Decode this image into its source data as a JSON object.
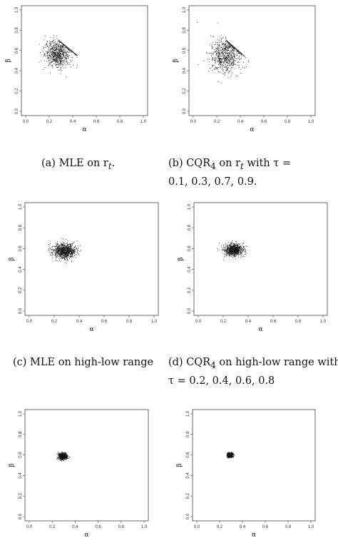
{
  "chart_data": [
    {
      "type": "scatter",
      "xlabel": "α",
      "ylabel": "β",
      "xlim": [
        0,
        1
      ],
      "ylim": [
        0,
        1
      ],
      "xticks": [
        "0.0",
        "0.2",
        "0.4",
        "0.6",
        "0.8",
        "1.0"
      ],
      "yticks": [
        "0.0",
        "0.2",
        "0.4",
        "0.6",
        "0.8",
        "1.0"
      ],
      "center": [
        0.27,
        0.57
      ],
      "spread": [
        0.055,
        0.065
      ],
      "n_points": 700,
      "boundary_line": [
        [
          0.28,
          0.7
        ],
        [
          0.44,
          0.55
        ]
      ]
    },
    {
      "type": "scatter",
      "xlabel": "α",
      "ylabel": "β",
      "xlim": [
        0,
        1
      ],
      "ylim": [
        0,
        1
      ],
      "xticks": [
        "0.0",
        "0.2",
        "0.4",
        "0.6",
        "0.8",
        "1.0"
      ],
      "yticks": [
        "0.0",
        "0.2",
        "0.4",
        "0.6",
        "0.8",
        "1.0"
      ],
      "center": [
        0.27,
        0.56
      ],
      "spread": [
        0.065,
        0.085
      ],
      "n_points": 700,
      "boundary_line": [
        [
          0.28,
          0.7
        ],
        [
          0.42,
          0.56
        ]
      ]
    },
    {
      "type": "scatter",
      "xlabel": "α",
      "ylabel": "β",
      "xlim": [
        0,
        1
      ],
      "ylim": [
        0,
        1
      ],
      "xticks": [
        "0.0",
        "0.2",
        "0.4",
        "0.6",
        "0.8",
        "1.0"
      ],
      "yticks": [
        "0.0",
        "0.2",
        "0.4",
        "0.6",
        "0.8",
        "1.0"
      ],
      "center": [
        0.28,
        0.58
      ],
      "spread": [
        0.045,
        0.035
      ],
      "n_points": 900
    },
    {
      "type": "scatter",
      "xlabel": "α",
      "ylabel": "β",
      "xlim": [
        0,
        1
      ],
      "ylim": [
        0,
        1
      ],
      "xticks": [
        "0.0",
        "0.2",
        "0.4",
        "0.6",
        "0.8",
        "1.0"
      ],
      "yticks": [
        "0.0",
        "0.2",
        "0.4",
        "0.6",
        "0.8",
        "1.0"
      ],
      "center": [
        0.28,
        0.59
      ],
      "spread": [
        0.04,
        0.03
      ],
      "n_points": 800
    },
    {
      "type": "scatter",
      "xlabel": "α",
      "ylabel": "β",
      "xlim": [
        0,
        1
      ],
      "ylim": [
        0,
        1
      ],
      "xticks": [
        "0.0",
        "0.2",
        "0.4",
        "0.6",
        "0.8",
        "1.0"
      ],
      "yticks": [
        "0.0",
        "0.2",
        "0.4",
        "0.6",
        "0.8",
        "1.0"
      ],
      "center": [
        0.29,
        0.59
      ],
      "spread": [
        0.018,
        0.016
      ],
      "n_points": 600
    },
    {
      "type": "scatter",
      "xlabel": "α",
      "ylabel": "β",
      "xlim": [
        0,
        1
      ],
      "ylim": [
        0,
        1
      ],
      "xticks": [
        "0.0",
        "0.2",
        "0.4",
        "0.6",
        "0.8",
        "1.0"
      ],
      "yticks": [
        "0.0",
        "0.2",
        "0.4",
        "0.6",
        "0.8",
        "1.0"
      ],
      "center": [
        0.29,
        0.6
      ],
      "spread": [
        0.012,
        0.012
      ],
      "n_points": 500
    }
  ],
  "captions": {
    "a": "(a) MLE on r",
    "a_sub": "t",
    "b_line1": "(b) CQR",
    "b_sub": "4",
    "b_rest": " on r",
    "b_sub2": "t",
    "b_with": " with τ =",
    "b_line2": "0.1, 0.3, 0.7, 0.9.",
    "c": "(c) MLE on high-low range",
    "d_line1": "(d) CQR",
    "d_sub": "4",
    "d_rest": " on high-low range with",
    "d_line2": "τ = 0.2, 0.4, 0.6, 0.8"
  }
}
